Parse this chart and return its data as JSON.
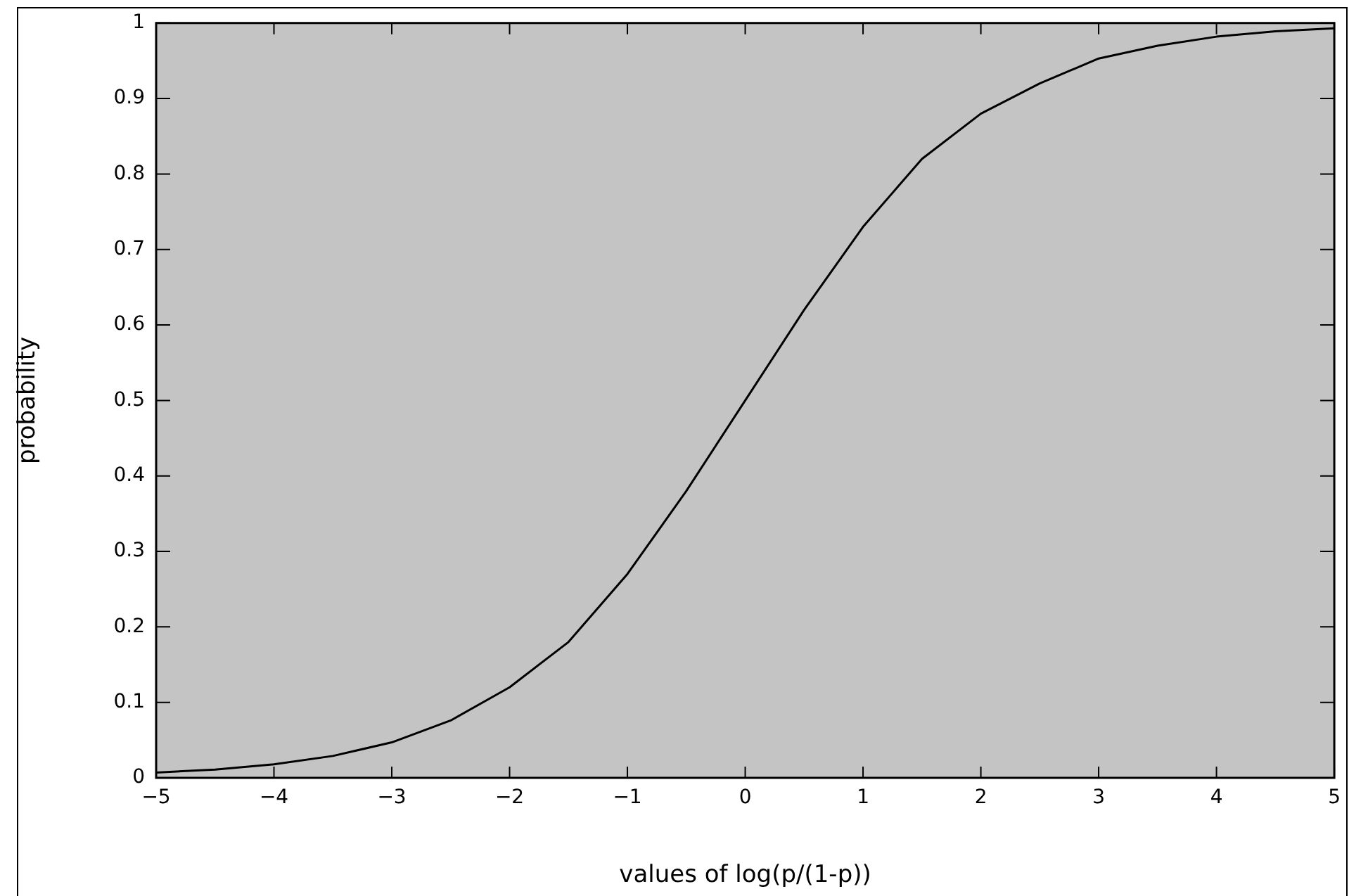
{
  "chart_data": {
    "type": "line",
    "xlabel": "values of log(p/(1-p))",
    "ylabel": "probability",
    "series": [
      {
        "color": "#000000",
        "x": [
          -5,
          -4.5,
          -4,
          -3.5,
          -3,
          -2.5,
          -2,
          -1.5,
          -1,
          -0.5,
          0,
          0.5,
          1,
          1.5,
          2,
          2.5,
          3,
          3.5,
          4,
          4.5,
          5
        ],
        "values": [
          0.007,
          0.011,
          0.018,
          0.029,
          0.047,
          0.076,
          0.12,
          0.18,
          0.27,
          0.38,
          0.5,
          0.62,
          0.73,
          0.82,
          0.88,
          0.92,
          0.953,
          0.97,
          0.982,
          0.989,
          0.993
        ]
      }
    ],
    "xlim": [
      -5,
      5
    ],
    "xticks": [
      -5,
      -4,
      -3,
      -2,
      -1,
      0,
      1,
      2,
      3,
      4,
      5
    ],
    "ylim": [
      0,
      1
    ],
    "yticks": [
      0,
      0.1,
      0.2,
      0.3,
      0.4,
      0.5,
      0.6,
      0.7,
      0.8,
      0.9,
      1
    ],
    "grid": false,
    "legend": false,
    "marker": "none",
    "line_style": "solid"
  }
}
